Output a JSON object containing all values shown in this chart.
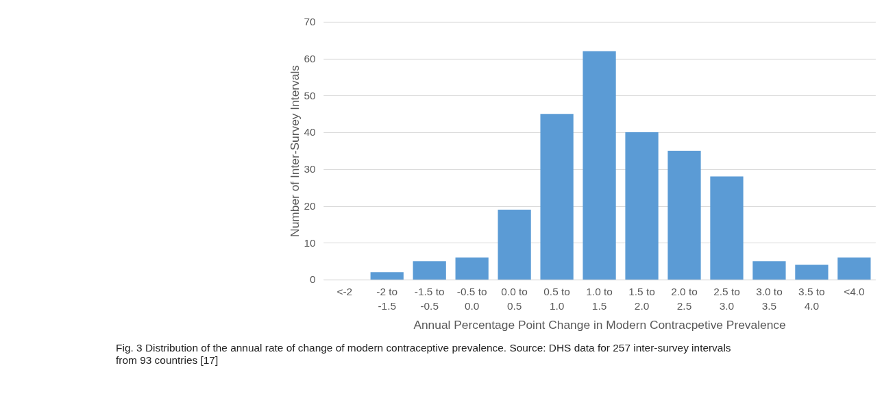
{
  "chart_data": {
    "type": "bar",
    "xlabel": "Annual Percentage Point Change in Modern Contracpetive Prevalence",
    "ylabel": "Number of Inter-Survey Intervals",
    "categories": [
      "<-2",
      "-2 to -1.5",
      "-1.5 to -0.5",
      "-0.5 to 0.0",
      "0.0 to 0.5",
      "0.5 to 1.0",
      "1.0 to 1.5",
      "1.5 to 2.0",
      "2.0 to 2.5",
      "2.5 to 3.0",
      "3.0 to 3.5",
      "3.5 to 4.0",
      "<4.0"
    ],
    "values": [
      0,
      2,
      5,
      6,
      19,
      45,
      62,
      40,
      35,
      28,
      5,
      4,
      6
    ],
    "color": "#5b9bd5",
    "ylim": [
      0,
      70
    ],
    "yticks": [
      0,
      10,
      20,
      30,
      40,
      50,
      60,
      70
    ],
    "grid": "y",
    "annotations": [
      "Fig. 3 Distribution of the annual rate of change of modern contraceptive prevalence. Source: DHS data for 257 inter-survey intervals from 93 countries [17]"
    ]
  }
}
